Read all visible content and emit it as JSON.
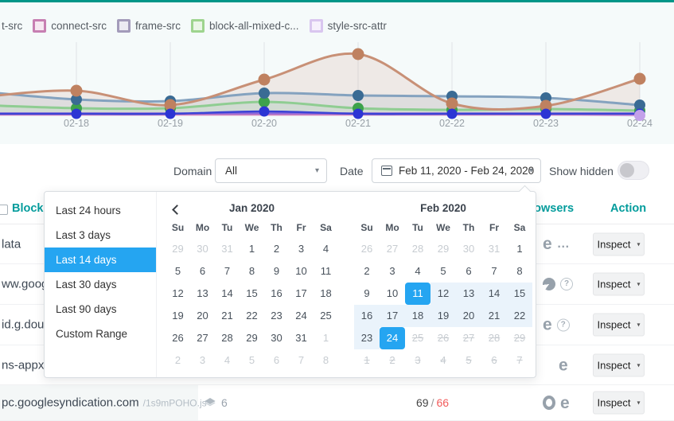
{
  "colors": {
    "topbar": "#009688",
    "accent_blue": "#25a5f1",
    "teal_header": "#039c9c",
    "range_bg": "#eaf3fb",
    "flag_red": "#f25c5c"
  },
  "legend": {
    "items": [
      {
        "label": "t-src",
        "partial": true,
        "border": null,
        "fill": null
      },
      {
        "label": "connect-src",
        "partial": false,
        "border": "#c77fb2",
        "fill": "#f6e8f1"
      },
      {
        "label": "frame-src",
        "partial": false,
        "border": "#a39bba",
        "fill": "#eceaf2"
      },
      {
        "label": "block-all-mixed-c...",
        "partial": false,
        "border": "#9ed48e",
        "fill": "#eaf6e6"
      },
      {
        "label": "style-src-attr",
        "partial": false,
        "border": "#d9c6ef",
        "fill": "#f6f0fc"
      }
    ]
  },
  "chart_data": {
    "type": "line",
    "title": "",
    "categories": [
      "02-18",
      "02-19",
      "02-20",
      "02-21",
      "02-22",
      "02-23",
      "02-24"
    ],
    "y_axis_visible": false,
    "units": "relative height (no y-axis labels shown in screenshot)",
    "grid": "vertical-only",
    "legend_note": "legend row partially cut off at left edge of screenshot",
    "series": [
      {
        "name": "tan",
        "color": "#c89076",
        "dot_color": "#bf8160",
        "fill": true,
        "fill_opacity": 0.15,
        "width": 3,
        "dots": "all",
        "lead": 23,
        "values": [
          31,
          13,
          45,
          77,
          15,
          12,
          46
        ]
      },
      {
        "name": "steel-blue",
        "color": "#84a2bf",
        "dot_color": "#3a6b94",
        "fill": true,
        "fill_opacity": 0.16,
        "width": 3,
        "dots": "all",
        "lead": 30,
        "values": [
          20,
          18,
          28,
          25,
          24,
          22,
          13
        ]
      },
      {
        "name": "green",
        "color": "#8fcd92",
        "dot_color": "#3da24b",
        "fill": true,
        "fill_opacity": 0.15,
        "width": 3,
        "dots": "all",
        "lead": 13,
        "values": [
          9,
          9,
          17,
          9,
          7,
          8,
          6
        ]
      },
      {
        "name": "violet",
        "color": "#9067d8",
        "dot_color": null,
        "fill": false,
        "fill_opacity": 0,
        "width": 2.5,
        "dots": "none",
        "lead": 2.5,
        "values": [
          2.5,
          2.5,
          2.5,
          2.5,
          2.5,
          2.5,
          2.5
        ]
      },
      {
        "name": "pink",
        "color": "#d583ba",
        "dot_color": null,
        "fill": false,
        "fill_opacity": 0,
        "width": 2.5,
        "dots": "none",
        "lead": 1,
        "values": [
          1,
          1,
          1,
          1,
          1,
          1,
          1
        ]
      },
      {
        "name": "lavender",
        "color": "#cfb0f2",
        "dot_color": "#c3a1ea",
        "fill": false,
        "fill_opacity": 0,
        "width": 2.5,
        "dots": "last",
        "lead": 1,
        "values": [
          1,
          1,
          1,
          1,
          1,
          1,
          0
        ]
      },
      {
        "name": "royal-blue",
        "color": "#3b43d6",
        "dot_color": "#2c35d4",
        "fill": false,
        "fill_opacity": 0,
        "width": 2.5,
        "dots": "all",
        "lead": 2,
        "values": [
          2,
          2,
          5,
          2,
          2,
          2,
          2
        ]
      }
    ]
  },
  "filters": {
    "domain_label": "Domain",
    "domain_value": "All",
    "date_label": "Date",
    "date_value": "Feb 11, 2020 - Feb 24, 2020",
    "show_hidden_label": "Show hidden",
    "show_hidden_on": false
  },
  "datepicker": {
    "presets": [
      "Last 24 hours",
      "Last 3 days",
      "Last 14 days",
      "Last 30 days",
      "Last 90 days",
      "Custom Range"
    ],
    "active_preset": "Last 14 days",
    "dow": [
      "Su",
      "Mo",
      "Tu",
      "We",
      "Th",
      "Fr",
      "Sa"
    ],
    "state_codes": {
      "n": "normal",
      "o": "other-month",
      "s": "selected",
      "r": "in-range",
      "x": "disabled-struck"
    },
    "months": [
      {
        "title": "Jan 2020",
        "days": [
          "o29",
          "o30",
          "o31",
          "n1",
          "n2",
          "n3",
          "n4",
          "n5",
          "n6",
          "n7",
          "n8",
          "n9",
          "n10",
          "n11",
          "n12",
          "n13",
          "n14",
          "n15",
          "n16",
          "n17",
          "n18",
          "n19",
          "n20",
          "n21",
          "n22",
          "n23",
          "n24",
          "n25",
          "n26",
          "n27",
          "n28",
          "n29",
          "n30",
          "n31",
          "o1",
          "o2",
          "o3",
          "o4",
          "o5",
          "o6",
          "o7",
          "o8"
        ]
      },
      {
        "title": "Feb 2020",
        "days": [
          "o26",
          "o27",
          "o28",
          "o29",
          "o30",
          "o31",
          "n1",
          "n2",
          "n3",
          "n4",
          "n5",
          "n6",
          "n7",
          "n8",
          "n9",
          "n10",
          "s11",
          "r12",
          "r13",
          "r14",
          "r15",
          "r16",
          "r17",
          "r18",
          "r19",
          "r20",
          "r21",
          "r22",
          "r23",
          "s24",
          "x25",
          "x26",
          "x27",
          "x28",
          "x29",
          "x1",
          "x2",
          "x3",
          "x4",
          "x5",
          "x6",
          "x7"
        ]
      }
    ]
  },
  "table": {
    "headers": {
      "blocked": "Blocked",
      "browsers": "Browsers",
      "action": "Action"
    },
    "action_label": "Inspect",
    "rows": [
      {
        "uri_fragment": "lata",
        "path": null,
        "layers_count": null,
        "count_total": null,
        "count_flagged": null,
        "browsers": [
          "edge",
          "more"
        ]
      },
      {
        "uri_fragment": "ww.googl",
        "path": null,
        "layers_count": null,
        "count_total": null,
        "count_flagged": null,
        "browsers": [
          "firefox",
          "unknown"
        ]
      },
      {
        "uri_fragment": "id.g.doubl",
        "path": null,
        "layers_count": null,
        "count_total": null,
        "count_flagged": null,
        "browsers": [
          "edge",
          "unknown"
        ]
      },
      {
        "uri_fragment": "ns-appx-w",
        "path": null,
        "layers_count": null,
        "count_total": null,
        "count_flagged": null,
        "browsers": [
          "edge"
        ]
      },
      {
        "uri_fragment": "pc.googlesyndication.com",
        "path": "/1s9mPOHO.js",
        "layers_count": "6",
        "count_total": "69",
        "count_flagged": "66",
        "browsers": [
          "opera",
          "edge"
        ]
      }
    ]
  }
}
